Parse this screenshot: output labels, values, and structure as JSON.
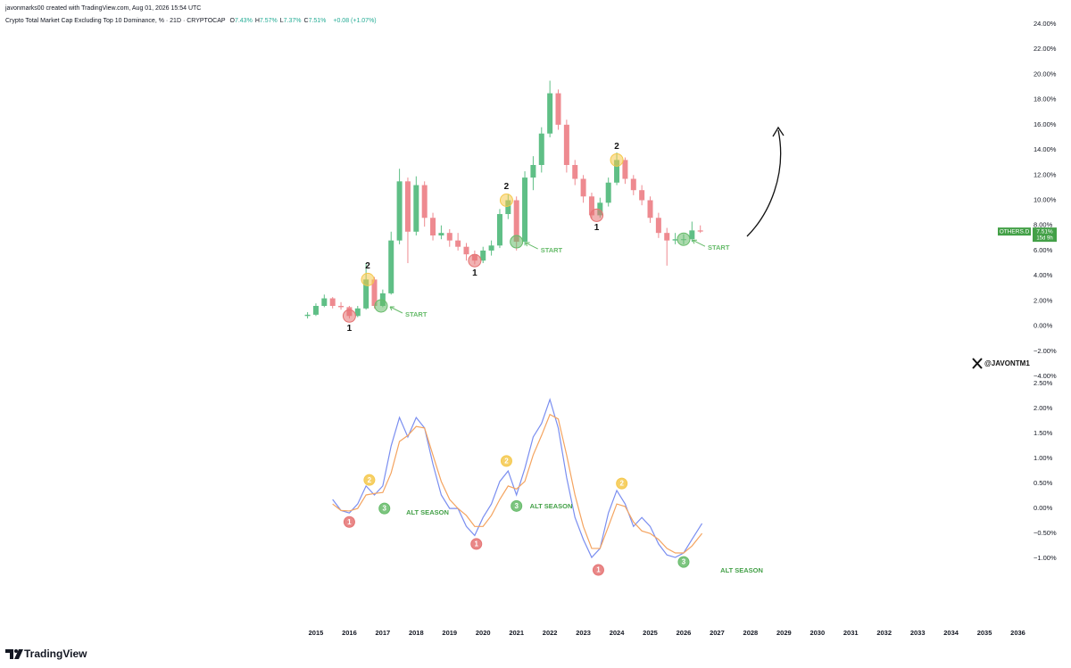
{
  "header": {
    "credit": "javonmarks00 created with TradingView.com, Aug 01, 2026 15:54 UTC",
    "symbol": "Crypto Total Market Cap Excluding Top 10 Dominance, % · 21D · CRYPTOCAP",
    "ohlc": [
      {
        "key": "O",
        "value": "7.43%"
      },
      {
        "key": "H",
        "value": "7.57%"
      },
      {
        "key": "L",
        "value": "7.37%"
      },
      {
        "key": "C",
        "value": "7.51%"
      }
    ],
    "change": "+0.08 (+1.07%)"
  },
  "watermark": "@JAVONTM1",
  "brand": "TradingView",
  "chart_data": [
    {
      "type": "candlestick",
      "up_color": "#5fbf86",
      "down_color": "#ee8a90",
      "xlim": [
        2005.55,
        2036.52
      ],
      "ylim": [
        -4,
        24
      ],
      "yticks": [
        {
          "value": 24,
          "label": "24.00%"
        },
        {
          "value": 22,
          "label": "22.00%"
        },
        {
          "value": 20,
          "label": "20.00%"
        },
        {
          "value": 18,
          "label": "18.00%"
        },
        {
          "value": 16,
          "label": "16.00%"
        },
        {
          "value": 14,
          "label": "14.00%"
        },
        {
          "value": 12,
          "label": "12.00%"
        },
        {
          "value": 10,
          "label": "10.00%"
        },
        {
          "value": 8,
          "label": "8.00%"
        },
        {
          "value": 6,
          "label": "6.00%"
        },
        {
          "value": 4,
          "label": "4.00%"
        },
        {
          "value": 2,
          "label": "2.00%"
        },
        {
          "value": 0,
          "label": "0.00%"
        },
        {
          "value": -2,
          "label": "−2.00%"
        },
        {
          "value": -4,
          "label": "−4.00%"
        }
      ],
      "x": [
        2014.75,
        2015.0,
        2015.25,
        2015.5,
        2015.75,
        2016.0,
        2016.25,
        2016.5,
        2016.75,
        2017.0,
        2017.25,
        2017.5,
        2017.75,
        2018.0,
        2018.25,
        2018.5,
        2018.75,
        2019.0,
        2019.25,
        2019.5,
        2019.75,
        2020.0,
        2020.25,
        2020.5,
        2020.75,
        2021.0,
        2021.25,
        2021.5,
        2021.75,
        2022.0,
        2022.25,
        2022.5,
        2022.75,
        2023.0,
        2023.25,
        2023.5,
        2023.75,
        2024.0,
        2024.25,
        2024.5,
        2024.75,
        2025.0,
        2025.25,
        2025.5,
        2025.75,
        2026.0,
        2026.25,
        2026.5
      ],
      "open": [
        0.8,
        0.9,
        1.6,
        2.2,
        1.6,
        1.5,
        0.8,
        1.4,
        3.7,
        1.6,
        2.6,
        6.8,
        11.5,
        7.5,
        11.2,
        8.6,
        7.2,
        7.4,
        6.8,
        6.3,
        5.7,
        5.2,
        6.0,
        6.4,
        8.9,
        10.0,
        6.7,
        11.8,
        12.8,
        15.3,
        18.5,
        16.0,
        12.8,
        11.7,
        10.3,
        8.8,
        9.8,
        11.4,
        13.2,
        11.7,
        10.8,
        10.0,
        8.6,
        7.4,
        6.8,
        6.9,
        6.9,
        7.6
      ],
      "high": [
        1.1,
        1.8,
        2.5,
        2.3,
        1.9,
        1.6,
        1.6,
        5.0,
        3.9,
        2.9,
        7.5,
        12.5,
        11.8,
        11.9,
        11.5,
        9.0,
        8.0,
        7.7,
        7.4,
        6.6,
        6.0,
        6.3,
        6.8,
        9.3,
        10.5,
        10.3,
        12.3,
        13.5,
        15.8,
        19.5,
        18.8,
        16.4,
        13.2,
        12.0,
        10.6,
        10.2,
        11.8,
        13.8,
        13.4,
        12.0,
        11.2,
        10.3,
        9.0,
        7.8,
        7.4,
        7.3,
        8.3,
        8.0
      ],
      "low": [
        0.6,
        0.8,
        1.5,
        1.4,
        1.3,
        0.6,
        0.7,
        1.3,
        1.4,
        1.5,
        2.5,
        6.5,
        5.0,
        7.2,
        7.9,
        6.8,
        6.9,
        6.3,
        6.0,
        5.2,
        4.9,
        5.0,
        5.6,
        6.2,
        8.5,
        6.0,
        6.4,
        10.8,
        12.2,
        15.0,
        15.6,
        12.2,
        11.2,
        9.8,
        8.5,
        8.6,
        9.5,
        11.2,
        11.3,
        10.4,
        9.6,
        8.2,
        7.0,
        4.8,
        6.5,
        6.5,
        6.7,
        7.4
      ],
      "close": [
        0.9,
        1.6,
        2.2,
        1.6,
        1.5,
        0.8,
        1.4,
        3.7,
        1.6,
        2.6,
        6.8,
        11.5,
        7.5,
        11.2,
        8.6,
        7.2,
        7.4,
        6.8,
        6.3,
        5.7,
        5.2,
        6.0,
        6.4,
        8.9,
        10.0,
        6.7,
        11.8,
        12.8,
        15.3,
        18.5,
        16.0,
        12.8,
        11.7,
        10.3,
        8.8,
        9.8,
        11.4,
        13.2,
        11.7,
        10.8,
        10.0,
        8.6,
        7.4,
        6.8,
        6.9,
        6.9,
        7.6,
        7.51
      ],
      "markers": [
        {
          "x": 2016.0,
          "y": 0.8,
          "color": "#e57373",
          "label": "1",
          "place": "below"
        },
        {
          "x": 2016.55,
          "y": 3.7,
          "color": "#f5c84c",
          "label": "2",
          "place": "above"
        },
        {
          "x": 2016.95,
          "y": 1.6,
          "color": "#66bb6a",
          "label": "START",
          "place": "right"
        },
        {
          "x": 2019.75,
          "y": 5.2,
          "color": "#e57373",
          "label": "1",
          "place": "below"
        },
        {
          "x": 2020.7,
          "y": 10.0,
          "color": "#f5c84c",
          "label": "2",
          "place": "above"
        },
        {
          "x": 2021.0,
          "y": 6.7,
          "color": "#66bb6a",
          "label": "START",
          "place": "right"
        },
        {
          "x": 2023.4,
          "y": 8.8,
          "color": "#e57373",
          "label": "1",
          "place": "below"
        },
        {
          "x": 2024.0,
          "y": 13.2,
          "color": "#f5c84c",
          "label": "2",
          "place": "above"
        },
        {
          "x": 2026.0,
          "y": 6.9,
          "color": "#66bb6a",
          "label": "START",
          "place": "right"
        }
      ],
      "last": {
        "name": "OTHERS.D",
        "value": 7.51,
        "label": "7.51%",
        "countdown": "15d 9h",
        "color": "#43a047"
      }
    },
    {
      "type": "line",
      "xlim": [
        2005.55,
        2036.52
      ],
      "ylim": [
        -1.8,
        2.5
      ],
      "xticks": [
        2015,
        2016,
        2017,
        2018,
        2019,
        2020,
        2021,
        2022,
        2023,
        2024,
        2025,
        2026,
        2027,
        2028,
        2029,
        2030,
        2031,
        2032,
        2033,
        2034,
        2035,
        2036
      ],
      "yticks": [
        {
          "value": 2.5,
          "label": "2.50%"
        },
        {
          "value": 2,
          "label": "2.00%"
        },
        {
          "value": 1.5,
          "label": "1.50%"
        },
        {
          "value": 1,
          "label": "1.00%"
        },
        {
          "value": 0.5,
          "label": "0.50%"
        },
        {
          "value": 0,
          "label": "0.00%"
        },
        {
          "value": -0.5,
          "label": "−0.50%"
        },
        {
          "value": -1,
          "label": "−1.00%"
        }
      ],
      "x": [
        2015.5,
        2015.75,
        2016.0,
        2016.25,
        2016.5,
        2016.75,
        2017.0,
        2017.25,
        2017.5,
        2017.75,
        2018.0,
        2018.25,
        2018.5,
        2018.75,
        2019.0,
        2019.25,
        2019.5,
        2019.75,
        2020.0,
        2020.25,
        2020.5,
        2020.75,
        2021.0,
        2021.25,
        2021.5,
        2021.75,
        2022.0,
        2022.25,
        2022.5,
        2022.75,
        2023.0,
        2023.25,
        2023.5,
        2023.75,
        2024.0,
        2024.25,
        2024.5,
        2024.75,
        2025.0,
        2025.25,
        2025.5,
        2025.75,
        2026.0,
        2026.25,
        2026.55
      ],
      "series": [
        {
          "color": "#7a8ef0",
          "values": [
            0.18,
            -0.04,
            -0.09,
            0.09,
            0.45,
            0.27,
            0.45,
            1.25,
            1.82,
            1.43,
            1.82,
            1.61,
            0.89,
            0.27,
            0.0,
            0.0,
            -0.36,
            -0.54,
            -0.18,
            0.09,
            0.54,
            0.75,
            0.27,
            0.8,
            1.43,
            1.7,
            2.18,
            1.61,
            0.62,
            -0.18,
            -0.62,
            -0.98,
            -0.8,
            -0.09,
            0.36,
            0.09,
            -0.36,
            -0.18,
            -0.36,
            -0.71,
            -0.93,
            -0.98,
            -0.89,
            -0.62,
            -0.3
          ]
        },
        {
          "color": "#f4a460",
          "values": [
            0.09,
            -0.04,
            -0.05,
            0.0,
            0.27,
            0.3,
            0.32,
            0.71,
            1.34,
            1.46,
            1.64,
            1.61,
            1.07,
            0.54,
            0.18,
            0.0,
            -0.14,
            -0.36,
            -0.36,
            -0.14,
            0.18,
            0.45,
            0.39,
            0.54,
            1.07,
            1.46,
            1.88,
            1.79,
            1.07,
            0.27,
            -0.36,
            -0.8,
            -0.8,
            -0.36,
            0.09,
            0.04,
            -0.27,
            -0.45,
            -0.5,
            -0.62,
            -0.8,
            -0.89,
            -0.89,
            -0.75,
            -0.5
          ]
        }
      ],
      "markers": [
        {
          "x": 2016.0,
          "y": -0.27,
          "color": "#e57373",
          "label": "1",
          "place": "center"
        },
        {
          "x": 2016.6,
          "y": 0.57,
          "color": "#f5c84c",
          "label": "2",
          "place": "center"
        },
        {
          "x": 2017.05,
          "y": 0.0,
          "color": "#66bb6a",
          "label": "3",
          "place": "center"
        },
        {
          "x": 2019.8,
          "y": -0.71,
          "color": "#e57373",
          "label": "1",
          "place": "center"
        },
        {
          "x": 2020.7,
          "y": 0.95,
          "color": "#f5c84c",
          "label": "2",
          "place": "center"
        },
        {
          "x": 2021.0,
          "y": 0.05,
          "color": "#66bb6a",
          "label": "3",
          "place": "center"
        },
        {
          "x": 2023.45,
          "y": -1.23,
          "color": "#e57373",
          "label": "1",
          "place": "center"
        },
        {
          "x": 2024.15,
          "y": 0.5,
          "color": "#f5c84c",
          "label": "2",
          "place": "center"
        },
        {
          "x": 2026.0,
          "y": -1.07,
          "color": "#66bb6a",
          "label": "3",
          "place": "center"
        }
      ],
      "annotations": [
        {
          "text": "ALT SEASON",
          "x": 2017.7,
          "y": -0.09,
          "color": "#43a047"
        },
        {
          "text": "ALT SEASON",
          "x": 2021.4,
          "y": 0.04,
          "color": "#43a047"
        },
        {
          "text": "ALT SEASON",
          "x": 2027.1,
          "y": -1.25,
          "color": "#43a047"
        }
      ]
    }
  ]
}
